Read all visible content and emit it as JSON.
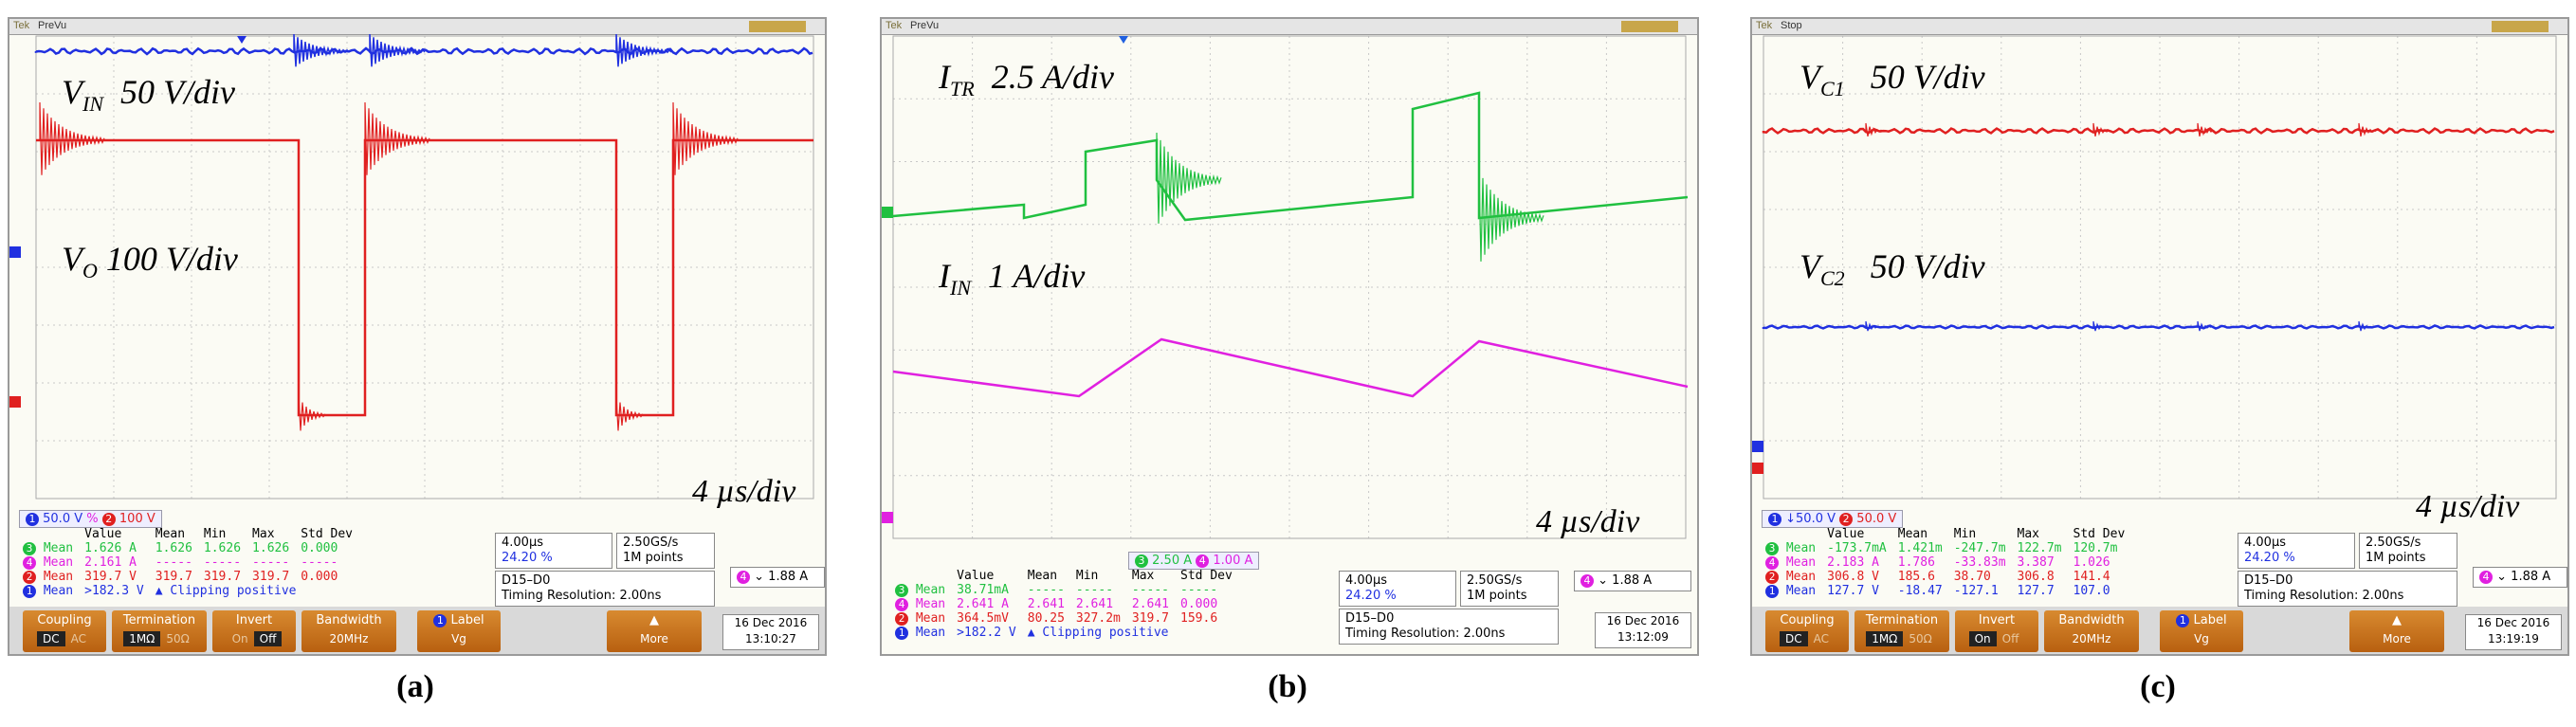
{
  "captions": [
    "(a)",
    "(b)",
    "(c)"
  ],
  "panels": [
    {
      "state": "PreVu",
      "labels": [
        {
          "name": "V",
          "sub": "IN",
          "scale": "50 V/div"
        },
        {
          "name": "V",
          "sub": "O",
          "scale": "100 V/div"
        }
      ],
      "timebase": "4 µs/div",
      "channel_bar": [
        "1",
        "50.0 V",
        "%",
        "2",
        "100 V"
      ],
      "measurements": {
        "headers": [
          "",
          "Value",
          "Mean",
          "Min",
          "Max",
          "Std Dev"
        ],
        "rows": [
          {
            "ch": "3",
            "cells": [
              "Mean",
              "1.626 A",
              "1.626",
              "1.626",
              "1.626",
              "0.000"
            ]
          },
          {
            "ch": "4",
            "cells": [
              "Mean",
              "2.161 A",
              "-----",
              "-----",
              "-----",
              "-----"
            ]
          },
          {
            "ch": "2",
            "cells": [
              "Mean",
              "319.7 V",
              "319.7",
              "319.7",
              "319.7",
              "0.000"
            ]
          },
          {
            "ch": "1",
            "cells": [
              "Mean",
              ">182.3 V",
              "▲ Clipping positive",
              "",
              "",
              ""
            ]
          }
        ]
      },
      "horiz": {
        "time": "4.00µs",
        "pos": "24.20 %",
        "rate": "2.50GS/s",
        "points": "1M points",
        "d": "D15–D0",
        "res": "Timing Resolution: 2.00ns"
      },
      "trigger": {
        "ch": "4",
        "level": "1.88 A"
      },
      "menu": {
        "coupling": "Coupling",
        "coupling_opts": [
          "DC",
          "AC"
        ],
        "termination": "Termination",
        "term_opts": [
          "1MΩ",
          "50Ω"
        ],
        "invert": "Invert",
        "invert_opts": [
          "On",
          "Off"
        ],
        "bandwidth": "Bandwidth",
        "bw_val": "20MHz",
        "label": "Label",
        "label_val": "Vg",
        "more": "More"
      },
      "date": "16 Dec 2016",
      "time": "13:10:27"
    },
    {
      "state": "PreVu",
      "labels": [
        {
          "name": "I",
          "sub": "TR",
          "scale": "2.5 A/div"
        },
        {
          "name": "I",
          "sub": "IN",
          "scale": "1 A/div"
        }
      ],
      "timebase": "4 µs/div",
      "channel_bar": [
        "3",
        "2.50 A",
        "4",
        "1.00 A"
      ],
      "measurements": {
        "headers": [
          "",
          "Value",
          "Mean",
          "Min",
          "Max",
          "Std Dev"
        ],
        "rows": [
          {
            "ch": "3",
            "cells": [
              "Mean",
              "38.71mA",
              "-----",
              "-----",
              "-----",
              "-----"
            ]
          },
          {
            "ch": "4",
            "cells": [
              "Mean",
              "2.641 A",
              "2.641",
              "2.641",
              "2.641",
              "0.000"
            ]
          },
          {
            "ch": "2",
            "cells": [
              "Mean",
              "364.5mV",
              "80.25",
              "327.2m",
              "319.7",
              "159.6"
            ]
          },
          {
            "ch": "1",
            "cells": [
              "Mean",
              ">182.2 V",
              "▲ Clipping positive",
              "",
              "",
              ""
            ]
          }
        ]
      },
      "horiz": {
        "time": "4.00µs",
        "pos": "24.20 %",
        "rate": "2.50GS/s",
        "points": "1M points",
        "d": "D15–D0",
        "res": "Timing Resolution: 2.00ns"
      },
      "trigger": {
        "ch": "4",
        "level": "1.88 A"
      },
      "date": "16 Dec 2016",
      "time": "13:12:09"
    },
    {
      "state": "Stop",
      "labels": [
        {
          "name": "V",
          "sub": "C1",
          "scale": "50 V/div"
        },
        {
          "name": "V",
          "sub": "C2",
          "scale": "50 V/div"
        }
      ],
      "timebase": "4 µs/div",
      "channel_bar": [
        "1",
        "↓50.0 V",
        "2",
        "50.0 V"
      ],
      "measurements": {
        "headers": [
          "",
          "Value",
          "Mean",
          "Min",
          "Max",
          "Std Dev"
        ],
        "rows": [
          {
            "ch": "3",
            "cells": [
              "Mean",
              "-173.7mA",
              "1.421m",
              "-247.7m",
              "122.7m",
              "120.7m"
            ]
          },
          {
            "ch": "4",
            "cells": [
              "Mean",
              "2.183 A",
              "1.786",
              "-33.83m",
              "3.387",
              "1.026"
            ]
          },
          {
            "ch": "2",
            "cells": [
              "Mean",
              "306.8 V",
              "185.6",
              "38.70",
              "306.8",
              "141.4"
            ]
          },
          {
            "ch": "1",
            "cells": [
              "Mean",
              "127.7 V",
              "-18.47",
              "-127.1",
              "127.7",
              "107.0"
            ]
          }
        ]
      },
      "horiz": {
        "time": "4.00µs",
        "pos": "24.20 %",
        "rate": "2.50GS/s",
        "points": "1M points",
        "d": "D15–D0",
        "res": "Timing Resolution: 2.00ns"
      },
      "trigger": {
        "ch": "4",
        "level": "1.88 A"
      },
      "menu": {
        "coupling": "Coupling",
        "coupling_opts": [
          "DC",
          "AC"
        ],
        "termination": "Termination",
        "term_opts": [
          "1MΩ",
          "50Ω"
        ],
        "invert": "Invert",
        "invert_opts": [
          "On",
          "Off"
        ],
        "bandwidth": "Bandwidth",
        "bw_val": "20MHz",
        "label": "Label",
        "label_val": "Vg",
        "more": "More"
      },
      "date": "16 Dec 2016",
      "time": "13:19:19"
    }
  ],
  "colors": {
    "ch1": "#2030e0",
    "ch2": "#e02020",
    "ch3": "#20c040",
    "ch4": "#e020e0",
    "grid": "#c8c8c8"
  },
  "chart_data": [
    {
      "type": "line",
      "grid": true,
      "series": [
        {
          "name": "V_IN",
          "values": [
            2.85,
            2.85,
            2.85,
            2.85,
            2.85,
            2.85,
            2.85,
            2.85,
            2.85,
            2.85
          ]
        },
        {
          "name": "V_O",
          "values": [
            0.0,
            -4.2,
            -4.2,
            0.0,
            0.0,
            -4.2,
            -4.2,
            0.0,
            0.0,
            0.0
          ]
        }
      ]
    },
    {
      "type": "line",
      "grid": true,
      "series": [
        {
          "name": "I_TR",
          "values": [
            1.0,
            1.2,
            2.8,
            2.3,
            1.4,
            1.6,
            1.8,
            2.0,
            3.2,
            1.3,
            1.5
          ]
        },
        {
          "name": "I_IN",
          "values": [
            -1.0,
            -1.4,
            -0.3,
            -0.7,
            -1.1,
            -1.4,
            -0.3,
            -0.8
          ]
        }
      ]
    },
    {
      "type": "line",
      "grid": true,
      "series": [
        {
          "name": "V_C1",
          "values": [
            3.3,
            3.3,
            3.3,
            3.3,
            3.3,
            3.3,
            3.3,
            3.3,
            3.3,
            3.3
          ]
        },
        {
          "name": "V_C2",
          "values": [
            0.9,
            0.9,
            0.9,
            0.9,
            0.9,
            0.9,
            0.9,
            0.9,
            0.9,
            0.9
          ]
        }
      ]
    }
  ]
}
